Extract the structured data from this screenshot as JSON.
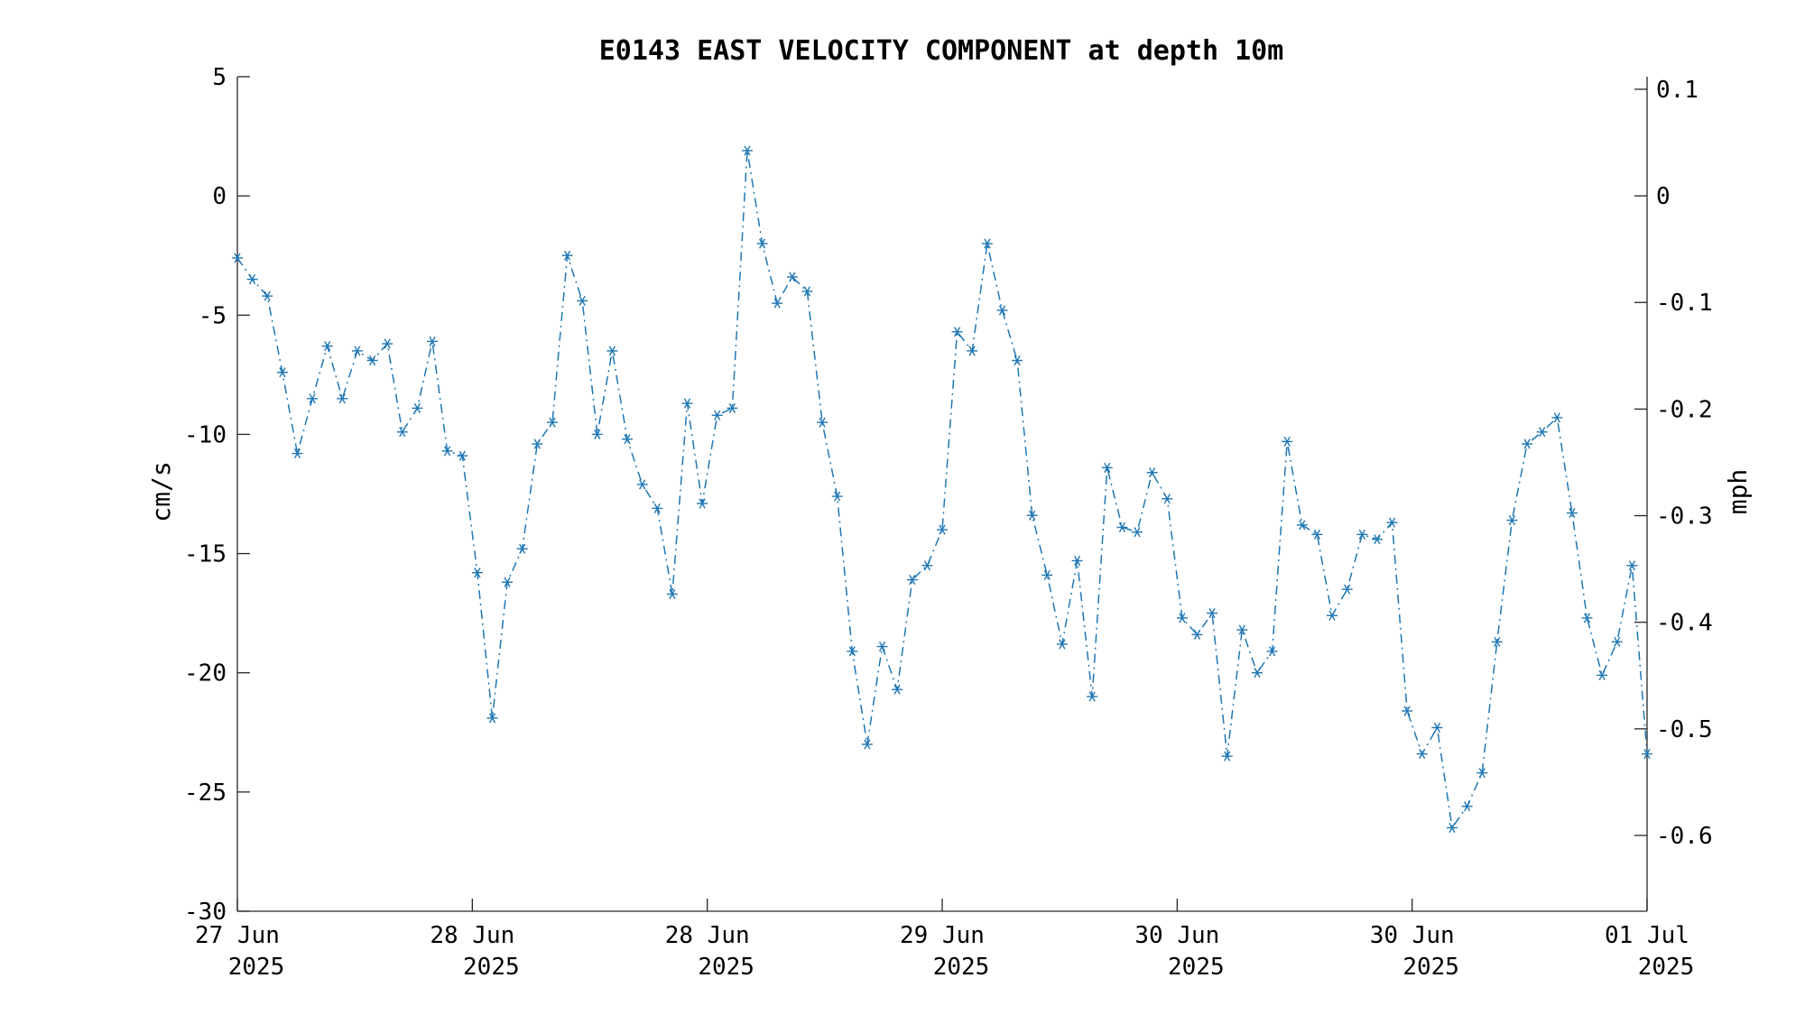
{
  "chart_data": {
    "type": "line",
    "title": "E0143 EAST VELOCITY COMPONENT at depth 10m",
    "ylabel": "cm/s",
    "y2label": "mph",
    "ylim": [
      -30,
      5
    ],
    "y2lim": [
      -0.6711,
      0.1118
    ],
    "xlim": [
      "2025-06-27 00:00",
      "2025-07-01 00:00"
    ],
    "yticks": [
      "5",
      "0",
      "-5",
      "-10",
      "-15",
      "-20",
      "-25",
      "-30"
    ],
    "y2ticks": [
      "0.1",
      "0",
      "-0.1",
      "-0.2",
      "-0.3",
      "-0.4",
      "-0.5",
      "-0.6"
    ],
    "y2tick_values": [
      0.1,
      0,
      -0.1,
      -0.2,
      -0.3,
      -0.4,
      -0.5,
      -0.6
    ],
    "xticks": [
      {
        "line1": "27 Jun",
        "line2": "2025"
      },
      {
        "line1": "28 Jun",
        "line2": "2025"
      },
      {
        "line1": "28 Jun",
        "line2": "2025"
      },
      {
        "line1": "29 Jun",
        "line2": "2025"
      },
      {
        "line1": "30 Jun",
        "line2": "2025"
      },
      {
        "line1": "30 Jun",
        "line2": "2025"
      },
      {
        "line1": "01 Jul",
        "line2": "2025"
      }
    ],
    "series_color": "#1f77b4",
    "line_style": "dash-dot",
    "marker": "asterisk",
    "grid": false,
    "series": [
      {
        "values": [
          -2.6,
          -3.5,
          -4.2,
          -7.4,
          -10.8,
          -8.5,
          -6.3,
          -8.5,
          -6.5,
          -6.9,
          -6.2,
          -9.9,
          -8.9,
          -6.1,
          -10.7,
          -10.9,
          -15.8,
          -21.9,
          -16.2,
          -14.8,
          -10.4,
          -9.5,
          -2.5,
          -4.4,
          -10.0,
          -6.5,
          -10.2,
          -12.1,
          -13.1,
          -16.7,
          -8.7,
          -12.9,
          -9.2,
          -8.9,
          1.9,
          -2.0,
          -4.5,
          -3.4,
          -4.0,
          -9.5,
          -12.6,
          -19.1,
          -23.0,
          -18.9,
          -20.7,
          -16.1,
          -15.5,
          -14.0,
          -5.7,
          -6.5,
          -2.0,
          -4.8,
          -6.9,
          -13.4,
          -15.9,
          -18.8,
          -15.3,
          -21.0,
          -11.4,
          -13.9,
          -14.1,
          -11.6,
          -12.7,
          -17.7,
          -18.4,
          -17.5,
          -23.5,
          -18.2,
          -20.0,
          -19.1,
          -10.3,
          -13.8,
          -14.2,
          -17.6,
          -16.5,
          -14.2,
          -14.4,
          -13.7,
          -21.6,
          -23.4,
          -22.3,
          -26.5,
          -25.6,
          -24.2,
          -18.7,
          -13.6,
          -10.4,
          -9.9,
          -9.3,
          -13.3,
          -17.7,
          -20.1,
          -18.7,
          -15.5,
          -23.4
        ]
      }
    ]
  }
}
